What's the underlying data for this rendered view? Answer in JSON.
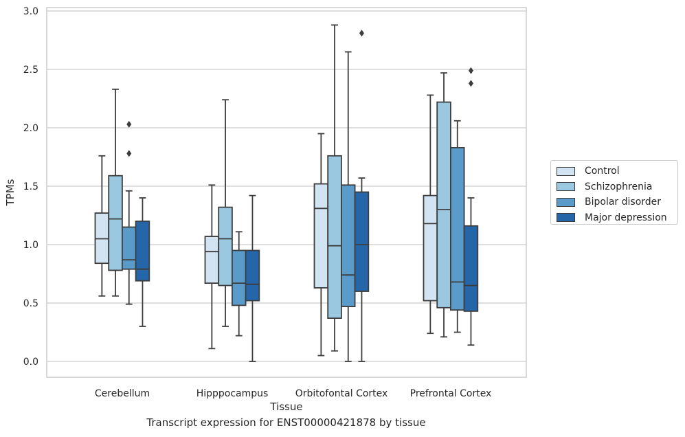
{
  "chart_data": {
    "type": "box",
    "title": "Transcript expression for ENST00000421878 by tissue",
    "xlabel": "Tissue",
    "ylabel": "TPMs",
    "ylim": [
      -0.14,
      3.02
    ],
    "yticks": [
      0.0,
      0.5,
      1.0,
      1.5,
      2.0,
      2.5,
      3.0
    ],
    "ytick_labels": [
      "0.0",
      "0.5",
      "1.0",
      "1.5",
      "2.0",
      "2.5",
      "3.0"
    ],
    "grid": "horizontal",
    "legend_position": "right",
    "categories": [
      "Cerebellum",
      "Hipppocampus",
      "Orbitofontal Cortex",
      "Prefrontal Cortex"
    ],
    "series": [
      {
        "name": "Control",
        "color": "#d2e3f2",
        "boxes": [
          {
            "whislo": 0.56,
            "q1": 0.84,
            "med": 1.05,
            "q3": 1.27,
            "whishi": 1.76,
            "fliers": []
          },
          {
            "whislo": 0.11,
            "q1": 0.67,
            "med": 0.94,
            "q3": 1.07,
            "whishi": 1.51,
            "fliers": []
          },
          {
            "whislo": 0.05,
            "q1": 0.63,
            "med": 1.31,
            "q3": 1.52,
            "whishi": 1.95,
            "fliers": []
          },
          {
            "whislo": 0.24,
            "q1": 0.52,
            "med": 1.18,
            "q3": 1.42,
            "whishi": 2.28,
            "fliers": []
          }
        ]
      },
      {
        "name": "Schizophrenia",
        "color": "#9ac8e0",
        "boxes": [
          {
            "whislo": 0.56,
            "q1": 0.78,
            "med": 1.22,
            "q3": 1.59,
            "whishi": 2.33,
            "fliers": []
          },
          {
            "whislo": 0.3,
            "q1": 0.65,
            "med": 1.05,
            "q3": 1.32,
            "whishi": 2.24,
            "fliers": []
          },
          {
            "whislo": 0.09,
            "q1": 0.37,
            "med": 0.99,
            "q3": 1.76,
            "whishi": 2.88,
            "fliers": []
          },
          {
            "whislo": 0.21,
            "q1": 0.46,
            "med": 1.3,
            "q3": 2.22,
            "whishi": 2.47,
            "fliers": []
          }
        ]
      },
      {
        "name": "Bipolar disorder",
        "color": "#5a9bca",
        "boxes": [
          {
            "whislo": 0.49,
            "q1": 0.79,
            "med": 0.87,
            "q3": 1.15,
            "whishi": 1.46,
            "fliers": [
              1.78,
              2.03
            ]
          },
          {
            "whislo": 0.22,
            "q1": 0.48,
            "med": 0.67,
            "q3": 0.95,
            "whishi": 1.11,
            "fliers": []
          },
          {
            "whislo": 0.0,
            "q1": 0.47,
            "med": 0.74,
            "q3": 1.51,
            "whishi": 2.65,
            "fliers": []
          },
          {
            "whislo": 0.25,
            "q1": 0.44,
            "med": 0.68,
            "q3": 1.83,
            "whishi": 2.06,
            "fliers": []
          }
        ]
      },
      {
        "name": "Major depression",
        "color": "#2566a8",
        "boxes": [
          {
            "whislo": 0.3,
            "q1": 0.69,
            "med": 0.79,
            "q3": 1.2,
            "whishi": 1.4,
            "fliers": []
          },
          {
            "whislo": 0.0,
            "q1": 0.52,
            "med": 0.66,
            "q3": 0.95,
            "whishi": 1.42,
            "fliers": []
          },
          {
            "whislo": 0.0,
            "q1": 0.6,
            "med": 1.0,
            "q3": 1.45,
            "whishi": 1.57,
            "fliers": [
              2.81
            ]
          },
          {
            "whislo": 0.14,
            "q1": 0.43,
            "med": 0.65,
            "q3": 1.16,
            "whishi": 1.4,
            "fliers": [
              2.38,
              2.49
            ]
          }
        ]
      }
    ]
  }
}
